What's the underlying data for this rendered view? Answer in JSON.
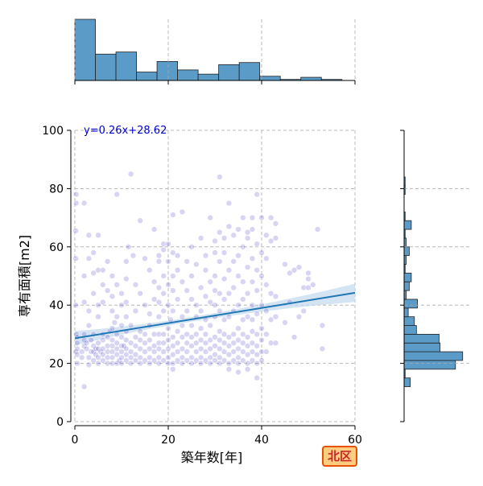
{
  "district_label": "北区",
  "colors": {
    "bar_fill": "#5b9bc8",
    "bar_stroke": "#222222",
    "point_fill": "#3a2fc0",
    "regression_line": "#1f77b4",
    "confidence_band": "#c6dbef",
    "equation_text": "#0000cc",
    "badge_bg": "#ffcc80",
    "badge_border": "#e65100",
    "badge_text": "#c62828"
  },
  "chart_data": {
    "type": "scatter",
    "title": "",
    "xlabel": "築年数[年]",
    "ylabel": "専有面積[m2]",
    "xlim": [
      0,
      60
    ],
    "ylim": [
      0,
      100
    ],
    "xticks": [
      0,
      20,
      40,
      60
    ],
    "yticks": [
      0,
      20,
      40,
      60,
      80,
      100
    ],
    "grid": true,
    "regression": {
      "slope": 0.26,
      "intercept": 28.62,
      "equation_label": "y=0.26x+28.62",
      "band_start": 2.5,
      "band_end": 1.2,
      "band_mid": 0.8
    },
    "marginal_x_histogram": {
      "bin_edges": [
        0,
        4.4,
        8.8,
        13.2,
        17.6,
        22,
        26.4,
        30.8,
        35.2,
        39.6,
        44,
        48.4,
        52.8,
        57.2
      ],
      "counts": [
        58,
        25,
        27,
        8,
        18,
        10,
        6,
        15,
        17,
        4,
        1,
        3,
        1
      ]
    },
    "marginal_y_histogram": {
      "bin_edges": [
        12,
        15,
        18,
        21,
        24,
        27,
        30,
        33,
        36,
        39,
        42,
        45,
        48,
        51,
        54,
        57,
        60,
        63,
        66,
        69,
        72,
        75,
        78,
        81,
        84
      ],
      "counts": [
        6,
        1,
        50,
        57,
        35,
        34,
        12,
        10,
        4,
        13,
        2,
        5,
        7,
        1,
        2,
        5,
        2,
        1,
        7,
        1,
        0,
        0,
        1,
        1
      ],
      "value_max": 58
    },
    "points": [
      [
        0.2,
        24
      ],
      [
        0.3,
        30
      ],
      [
        0.2,
        40
      ],
      [
        0.2,
        56
      ],
      [
        0.2,
        65.5
      ],
      [
        0.3,
        78
      ],
      [
        0.3,
        75
      ],
      [
        0.5,
        20
      ],
      [
        0.5,
        23
      ],
      [
        0.5,
        25
      ],
      [
        0.5,
        27
      ],
      [
        0.5,
        29
      ],
      [
        1.5,
        22
      ],
      [
        1.5,
        24
      ],
      [
        2,
        26
      ],
      [
        2,
        28
      ],
      [
        2,
        30
      ],
      [
        2,
        41
      ],
      [
        2,
        50
      ],
      [
        2,
        12
      ],
      [
        2,
        75
      ],
      [
        2.5,
        25
      ],
      [
        2.5,
        27
      ],
      [
        3,
        22
      ],
      [
        3,
        19.5
      ],
      [
        3,
        33
      ],
      [
        3,
        38
      ],
      [
        3,
        56
      ],
      [
        3,
        64
      ],
      [
        3.5,
        24
      ],
      [
        3.5,
        28
      ],
      [
        4,
        21
      ],
      [
        4,
        24
      ],
      [
        4,
        26
      ],
      [
        4,
        30
      ],
      [
        4,
        44
      ],
      [
        4,
        51
      ],
      [
        4,
        58
      ],
      [
        4.5,
        23
      ],
      [
        4.5,
        25
      ],
      [
        5,
        20
      ],
      [
        5,
        22
      ],
      [
        5,
        25
      ],
      [
        5,
        27
      ],
      [
        5,
        36
      ],
      [
        5,
        40
      ],
      [
        5,
        52
      ],
      [
        5,
        64
      ],
      [
        5.5,
        24
      ],
      [
        6,
        21
      ],
      [
        6,
        23
      ],
      [
        6,
        25
      ],
      [
        6,
        28
      ],
      [
        6,
        30
      ],
      [
        6,
        41
      ],
      [
        6,
        47
      ],
      [
        6,
        52
      ],
      [
        7,
        20
      ],
      [
        7,
        22
      ],
      [
        7,
        24
      ],
      [
        7,
        26
      ],
      [
        7,
        29
      ],
      [
        7,
        45
      ],
      [
        7,
        55
      ],
      [
        7.5,
        31
      ],
      [
        8,
        20
      ],
      [
        8,
        22
      ],
      [
        8,
        24
      ],
      [
        8,
        26
      ],
      [
        8,
        28
      ],
      [
        8,
        32
      ],
      [
        8,
        38
      ],
      [
        8,
        43
      ],
      [
        8,
        50
      ],
      [
        8.5,
        34
      ],
      [
        9,
        20
      ],
      [
        9,
        23
      ],
      [
        9,
        25
      ],
      [
        9,
        27
      ],
      [
        9,
        30
      ],
      [
        9,
        47
      ],
      [
        9,
        36
      ],
      [
        9,
        78
      ],
      [
        9.5,
        21
      ],
      [
        10,
        20
      ],
      [
        10,
        22
      ],
      [
        10,
        24
      ],
      [
        10,
        26
      ],
      [
        10,
        29
      ],
      [
        10,
        33
      ],
      [
        10,
        40
      ],
      [
        10,
        44
      ],
      [
        10.5,
        26
      ],
      [
        11,
        21
      ],
      [
        11,
        23
      ],
      [
        11,
        25
      ],
      [
        11,
        28
      ],
      [
        11,
        31
      ],
      [
        11,
        36
      ],
      [
        11,
        41
      ],
      [
        11,
        49
      ],
      [
        11,
        55
      ],
      [
        11.5,
        60
      ],
      [
        12,
        20
      ],
      [
        12,
        22
      ],
      [
        12,
        24
      ],
      [
        12,
        27
      ],
      [
        12,
        33
      ],
      [
        12,
        85
      ],
      [
        12.5,
        57
      ],
      [
        13,
        21
      ],
      [
        13,
        23
      ],
      [
        13,
        26
      ],
      [
        13,
        29
      ],
      [
        13,
        47
      ],
      [
        13,
        38
      ],
      [
        14,
        20
      ],
      [
        14,
        22
      ],
      [
        14,
        25
      ],
      [
        14,
        28
      ],
      [
        14,
        31
      ],
      [
        14,
        44
      ],
      [
        14,
        69
      ],
      [
        15,
        21
      ],
      [
        15,
        24
      ],
      [
        15,
        27
      ],
      [
        15,
        30
      ],
      [
        15,
        40
      ],
      [
        15,
        56
      ],
      [
        16,
        20
      ],
      [
        16,
        22
      ],
      [
        16,
        25
      ],
      [
        16,
        28
      ],
      [
        16,
        33
      ],
      [
        16,
        37
      ],
      [
        16,
        52
      ],
      [
        17,
        21
      ],
      [
        17,
        24
      ],
      [
        17,
        26
      ],
      [
        17,
        30
      ],
      [
        17,
        42
      ],
      [
        17,
        48
      ],
      [
        17,
        66
      ],
      [
        18,
        20
      ],
      [
        18,
        22
      ],
      [
        18,
        25
      ],
      [
        18,
        27
      ],
      [
        18,
        30
      ],
      [
        18,
        36
      ],
      [
        18,
        41
      ],
      [
        18,
        46
      ],
      [
        18,
        55
      ],
      [
        18,
        57
      ],
      [
        19,
        21
      ],
      [
        19,
        24
      ],
      [
        19,
        27
      ],
      [
        19,
        30
      ],
      [
        19,
        38
      ],
      [
        19,
        44
      ],
      [
        19,
        50
      ],
      [
        19,
        61
      ],
      [
        19,
        59
      ],
      [
        20,
        20
      ],
      [
        20,
        22
      ],
      [
        20,
        25
      ],
      [
        20,
        28
      ],
      [
        20,
        32
      ],
      [
        20,
        40
      ],
      [
        20,
        47
      ],
      [
        20,
        55
      ],
      [
        20,
        61
      ],
      [
        20.5,
        35
      ],
      [
        21,
        20
      ],
      [
        21,
        18
      ],
      [
        21,
        23
      ],
      [
        21,
        26
      ],
      [
        21,
        29
      ],
      [
        21,
        38
      ],
      [
        21,
        45
      ],
      [
        21,
        50
      ],
      [
        21,
        58
      ],
      [
        21,
        71
      ],
      [
        22,
        21
      ],
      [
        22,
        24
      ],
      [
        22,
        27
      ],
      [
        22,
        31
      ],
      [
        22,
        42
      ],
      [
        22,
        52
      ],
      [
        22,
        57
      ],
      [
        23,
        20
      ],
      [
        23,
        22
      ],
      [
        23,
        25
      ],
      [
        23,
        29
      ],
      [
        23,
        33
      ],
      [
        23,
        36
      ],
      [
        23,
        48
      ],
      [
        23,
        72
      ],
      [
        24,
        21
      ],
      [
        24,
        24
      ],
      [
        24,
        27
      ],
      [
        24,
        30
      ],
      [
        24,
        38
      ],
      [
        24,
        45
      ],
      [
        24,
        55
      ],
      [
        25,
        20
      ],
      [
        25,
        22
      ],
      [
        25,
        26
      ],
      [
        25,
        29
      ],
      [
        25,
        33
      ],
      [
        25,
        42
      ],
      [
        25,
        50
      ],
      [
        25,
        60
      ],
      [
        26,
        21
      ],
      [
        26,
        24
      ],
      [
        26,
        27
      ],
      [
        26,
        30
      ],
      [
        26,
        36
      ],
      [
        26,
        40
      ],
      [
        26,
        54
      ],
      [
        27,
        20
      ],
      [
        27,
        22
      ],
      [
        27,
        25
      ],
      [
        27,
        28
      ],
      [
        27,
        32
      ],
      [
        27,
        38
      ],
      [
        27,
        46
      ],
      [
        27,
        63
      ],
      [
        28,
        21
      ],
      [
        28,
        24
      ],
      [
        28,
        27
      ],
      [
        28,
        30
      ],
      [
        28,
        35
      ],
      [
        28,
        43
      ],
      [
        28,
        52
      ],
      [
        28,
        57
      ],
      [
        29,
        20
      ],
      [
        29,
        22
      ],
      [
        29,
        25
      ],
      [
        29,
        28
      ],
      [
        29,
        33
      ],
      [
        29,
        41
      ],
      [
        29,
        48
      ],
      [
        29,
        70
      ],
      [
        30,
        21
      ],
      [
        30,
        23
      ],
      [
        30,
        26
      ],
      [
        30,
        29
      ],
      [
        30,
        36
      ],
      [
        30,
        40
      ],
      [
        30,
        45
      ],
      [
        30,
        50
      ],
      [
        30,
        58
      ],
      [
        30,
        62
      ],
      [
        31,
        20
      ],
      [
        31,
        22
      ],
      [
        31,
        25
      ],
      [
        31,
        28
      ],
      [
        31,
        31
      ],
      [
        31,
        38
      ],
      [
        31,
        44
      ],
      [
        31,
        55
      ],
      [
        31,
        65
      ],
      [
        31,
        84
      ],
      [
        32,
        21
      ],
      [
        32,
        24
      ],
      [
        32,
        27
      ],
      [
        32,
        30
      ],
      [
        32,
        35
      ],
      [
        32,
        42
      ],
      [
        32,
        49
      ],
      [
        32,
        58
      ],
      [
        32,
        63
      ],
      [
        33,
        20
      ],
      [
        33,
        18
      ],
      [
        33,
        23
      ],
      [
        33,
        26
      ],
      [
        33,
        29
      ],
      [
        33,
        36
      ],
      [
        33,
        44
      ],
      [
        33,
        52
      ],
      [
        33,
        67
      ],
      [
        33,
        75
      ],
      [
        34,
        21
      ],
      [
        34,
        24
      ],
      [
        34,
        27
      ],
      [
        34,
        30
      ],
      [
        34,
        38
      ],
      [
        34,
        46
      ],
      [
        34,
        55
      ],
      [
        34,
        64
      ],
      [
        35,
        20
      ],
      [
        35,
        17
      ],
      [
        35,
        22
      ],
      [
        35,
        25
      ],
      [
        35,
        28
      ],
      [
        35,
        32
      ],
      [
        35,
        40
      ],
      [
        35,
        50
      ],
      [
        35,
        57
      ],
      [
        35,
        66
      ],
      [
        36,
        21
      ],
      [
        36,
        24
      ],
      [
        36,
        27
      ],
      [
        36,
        30
      ],
      [
        36,
        35
      ],
      [
        36,
        42
      ],
      [
        36,
        48
      ],
      [
        36,
        60
      ],
      [
        36,
        70
      ],
      [
        37,
        20
      ],
      [
        37,
        18
      ],
      [
        37,
        23
      ],
      [
        37,
        26
      ],
      [
        37,
        29
      ],
      [
        37,
        36
      ],
      [
        37,
        44
      ],
      [
        37,
        53
      ],
      [
        37,
        63
      ],
      [
        37,
        65
      ],
      [
        38,
        21
      ],
      [
        38,
        24
      ],
      [
        38,
        27
      ],
      [
        38,
        31
      ],
      [
        38,
        35
      ],
      [
        38,
        40
      ],
      [
        38,
        48
      ],
      [
        38,
        56
      ],
      [
        38,
        66
      ],
      [
        38,
        70
      ],
      [
        39,
        20
      ],
      [
        39,
        15
      ],
      [
        39,
        23
      ],
      [
        39,
        26
      ],
      [
        39,
        30
      ],
      [
        39,
        37
      ],
      [
        39,
        45
      ],
      [
        39,
        52
      ],
      [
        39,
        61
      ],
      [
        39,
        78
      ],
      [
        40,
        21
      ],
      [
        40,
        24
      ],
      [
        40,
        28
      ],
      [
        40,
        32
      ],
      [
        40,
        40
      ],
      [
        40,
        50
      ],
      [
        40,
        58
      ],
      [
        40,
        70
      ],
      [
        41,
        24
      ],
      [
        41,
        30
      ],
      [
        41,
        38
      ],
      [
        41,
        47
      ],
      [
        41,
        56
      ],
      [
        41,
        64
      ],
      [
        42,
        27
      ],
      [
        42,
        35
      ],
      [
        42,
        44
      ],
      [
        42,
        62
      ],
      [
        42,
        70
      ],
      [
        43,
        27
      ],
      [
        43,
        36
      ],
      [
        43,
        43
      ],
      [
        43,
        63
      ],
      [
        43,
        68
      ],
      [
        45,
        34
      ],
      [
        45,
        54
      ],
      [
        46,
        41
      ],
      [
        46,
        51
      ],
      [
        47,
        29
      ],
      [
        47,
        52
      ],
      [
        48,
        36
      ],
      [
        48,
        53
      ],
      [
        49,
        38
      ],
      [
        49,
        46
      ],
      [
        50,
        46
      ],
      [
        50,
        49
      ],
      [
        50,
        51
      ],
      [
        51,
        47
      ],
      [
        52,
        66
      ],
      [
        53,
        25
      ],
      [
        53,
        33
      ]
    ]
  }
}
